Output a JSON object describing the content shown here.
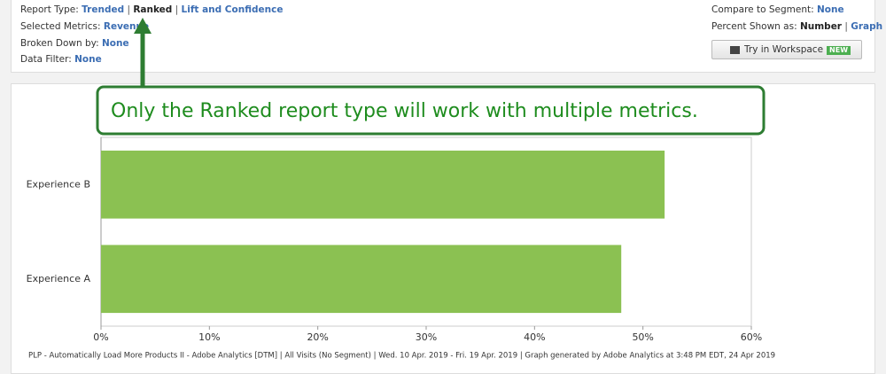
{
  "report_type": {
    "label": "Report Type:",
    "options": [
      "Trended",
      "Ranked",
      "Lift and Confidence"
    ],
    "separator": "|"
  },
  "selected_metrics": {
    "label": "Selected Metrics:",
    "value": "Revenue"
  },
  "broken_down_by": {
    "label": "Broken Down by:",
    "value": "None"
  },
  "data_filter": {
    "label": "Data Filter:",
    "value": "None"
  },
  "compare_to_segment": {
    "label": "Compare to Segment:",
    "value": "None"
  },
  "percent_shown_as": {
    "label": "Percent Shown as:",
    "options": [
      "Number",
      "Graph"
    ]
  },
  "workspace_button": {
    "label": "Try in Workspace",
    "badge": "NEW"
  },
  "callout": "Only the Ranked report type will work with multiple metrics.",
  "chart_data": {
    "type": "bar",
    "orientation": "horizontal",
    "categories": [
      "Experience B",
      "Experience A"
    ],
    "values": [
      52,
      48
    ],
    "color": "#8bc152",
    "xlim": [
      0,
      60
    ],
    "xticks": [
      {
        "value": 0,
        "label": "0%"
      },
      {
        "value": 10,
        "label": "10%"
      },
      {
        "value": 20,
        "label": "20%"
      },
      {
        "value": 30,
        "label": "30%"
      },
      {
        "value": 40,
        "label": "40%"
      },
      {
        "value": 50,
        "label": "50%"
      },
      {
        "value": 60,
        "label": "60%"
      }
    ]
  },
  "footer": "PLP - Automatically Load More Products II - Adobe Analytics [DTM] | All Visits (No Segment) | Wed. 10 Apr. 2019 - Fri. 19 Apr. 2019 | Graph generated by Adobe Analytics at  3:48 PM EDT, 24 Apr 2019"
}
